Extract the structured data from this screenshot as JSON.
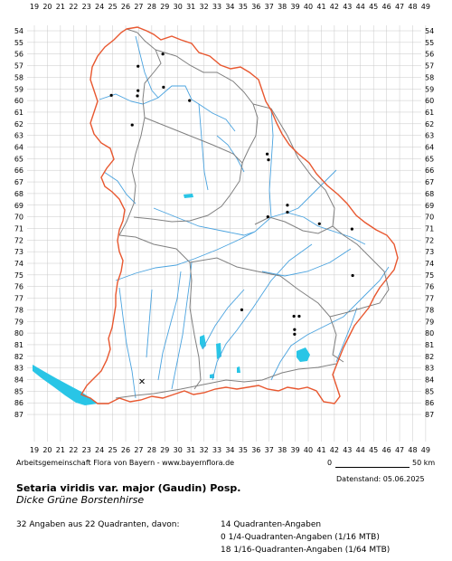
{
  "map": {
    "x_ticks": [
      "19",
      "20",
      "21",
      "22",
      "23",
      "24",
      "25",
      "26",
      "27",
      "28",
      "29",
      "30",
      "31",
      "32",
      "33",
      "34",
      "35",
      "36",
      "37",
      "38",
      "39",
      "40",
      "41",
      "42",
      "43",
      "44",
      "45",
      "46",
      "47",
      "48",
      "49"
    ],
    "y_ticks": [
      "54",
      "55",
      "56",
      "57",
      "58",
      "59",
      "60",
      "61",
      "62",
      "63",
      "64",
      "65",
      "66",
      "67",
      "68",
      "69",
      "70",
      "71",
      "72",
      "73",
      "74",
      "75",
      "76",
      "77",
      "78",
      "79",
      "80",
      "81",
      "82",
      "83",
      "84",
      "85",
      "86",
      "87"
    ],
    "colors": {
      "border": "#e8572f",
      "districts": "#808080",
      "rivers": "#4aa3df",
      "lakes": "#29c5e6",
      "grid": "#c8c8c8",
      "points": "#000000"
    },
    "occurrences": [
      {
        "x": 28.85,
        "y": 56.0
      },
      {
        "x": 26.95,
        "y": 57.05
      },
      {
        "x": 26.95,
        "y": 59.15
      },
      {
        "x": 28.9,
        "y": 58.85
      },
      {
        "x": 24.9,
        "y": 59.55
      },
      {
        "x": 26.9,
        "y": 59.6
      },
      {
        "x": 30.9,
        "y": 60.0
      },
      {
        "x": 26.5,
        "y": 62.1
      },
      {
        "x": 36.85,
        "y": 64.6
      },
      {
        "x": 36.95,
        "y": 65.1
      },
      {
        "x": 38.4,
        "y": 69.0
      },
      {
        "x": 38.4,
        "y": 69.6
      },
      {
        "x": 36.9,
        "y": 70.0
      },
      {
        "x": 40.85,
        "y": 70.6
      },
      {
        "x": 43.35,
        "y": 71.05
      },
      {
        "x": 43.4,
        "y": 75.05
      },
      {
        "x": 34.9,
        "y": 78.0
      },
      {
        "x": 38.9,
        "y": 78.55
      },
      {
        "x": 39.3,
        "y": 78.55
      },
      {
        "x": 38.95,
        "y": 79.7
      },
      {
        "x": 38.95,
        "y": 80.1
      }
    ],
    "uncertain": [
      {
        "x": 27.25,
        "y": 84.15
      }
    ]
  },
  "credit": "Arbeitsgemeinschaft Flora von Bayern - www.bayernflora.de",
  "scale": {
    "start": "0",
    "end": "50 km"
  },
  "date": "Datenstand: 05.06.2025",
  "species": {
    "name": "Setaria viridis var. major (Gaudin) Posp.",
    "german": "Dicke Grüne Borstenhirse"
  },
  "stats": {
    "left": "32 Angaben aus 22 Quadranten, davon:",
    "lines": [
      "14 Quadranten-Angaben",
      "0 1/4-Quadranten-Angaben (1/16 MTB)",
      "18 1/16-Quadranten-Angaben (1/64 MTB)"
    ]
  }
}
